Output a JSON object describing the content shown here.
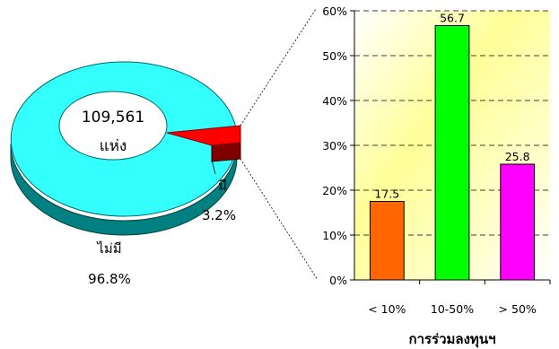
{
  "chart_data": [
    {
      "type": "pie",
      "style": "3d-donut-exploded",
      "center_label": [
        "109,561",
        "แห่ง"
      ],
      "slices": [
        {
          "label": "ไม่มี",
          "value": 96.8,
          "value_label": "96.8%",
          "color": "#33ffff",
          "side_color": "#008080"
        },
        {
          "label": "มี",
          "value": 3.2,
          "value_label": "3.2%",
          "color": "#ff0000",
          "side_color": "#800000"
        }
      ],
      "exploded_slice": "มี"
    },
    {
      "type": "bar",
      "categories": [
        "< 10%",
        "10-50%",
        "> 50%"
      ],
      "values": [
        17.5,
        56.7,
        25.8
      ],
      "data_labels": [
        "17.5",
        "56.7",
        "25.8"
      ],
      "colors": [
        "#ff6600",
        "#00ff00",
        "#ff00ff"
      ],
      "xlabel": "การร่วมลงทุนฯ",
      "ylim": [
        0,
        60
      ],
      "yticks": [
        0,
        10,
        20,
        30,
        40,
        50,
        60
      ],
      "ytick_labels": [
        "0%",
        "10%",
        "20%",
        "30%",
        "40%",
        "50%",
        "60%"
      ],
      "grid": "horizontal-dashed",
      "plot_background": "yellow-gradient"
    }
  ]
}
